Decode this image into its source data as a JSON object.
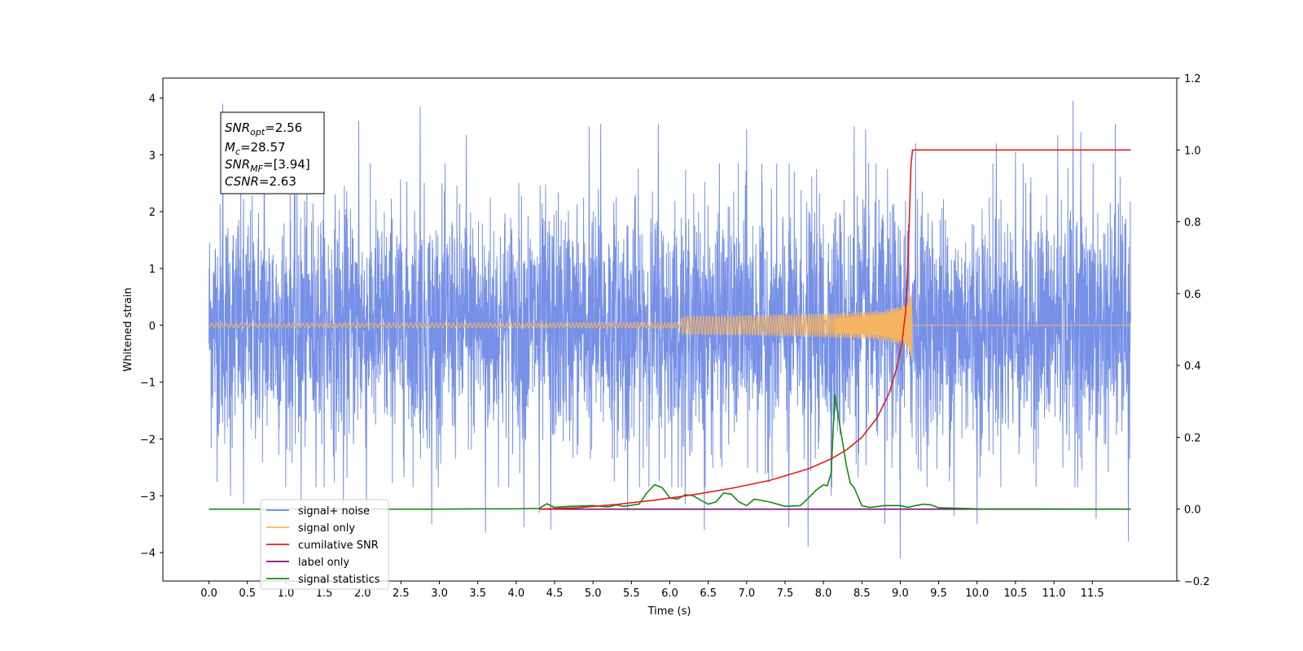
{
  "chart_data": {
    "type": "line",
    "xlabel": "Time (s)",
    "ylabel": "Whitened strain",
    "xlim": [
      -0.6,
      12.6
    ],
    "ylim": [
      -4.5,
      4.35
    ],
    "y2lim": [
      -0.2,
      1.2
    ],
    "x_ticks": [
      "0.0",
      "0.5",
      "1.0",
      "1.5",
      "2.0",
      "2.5",
      "3.0",
      "3.5",
      "4.0",
      "4.5",
      "5.0",
      "5.5",
      "6.0",
      "6.5",
      "7.0",
      "7.5",
      "8.0",
      "8.5",
      "9.0",
      "9.5",
      "10.0",
      "10.5",
      "11.0",
      "11.5"
    ],
    "y_ticks": [
      "−4",
      "−3",
      "−2",
      "−1",
      "0",
      "1",
      "2",
      "3",
      "4"
    ],
    "y2_ticks": [
      "−0.2",
      "0.0",
      "0.2",
      "0.4",
      "0.6",
      "0.8",
      "1.0",
      "1.2"
    ],
    "grid": false,
    "legend_position": "lower-left",
    "info_box": {
      "snr_opt": {
        "base": "SNR",
        "sub": "opt",
        "value": "=2.56"
      },
      "mc": {
        "base": "M",
        "sub": "c",
        "value": "=28.57"
      },
      "snr_mf": {
        "base": "SNR",
        "sub": "MF",
        "value": "=[3.94]"
      },
      "csnr": {
        "base": "CSNR",
        "value": "=2.63"
      }
    },
    "series": [
      {
        "name": "signal+ noise",
        "color": "#6f8ae6",
        "axis": "left",
        "x_range": [
          0.0,
          12.0
        ],
        "std": 1.05,
        "spikes": [
          [
            0.18,
            3.9
          ],
          [
            0.28,
            -3.0
          ],
          [
            0.45,
            -3.15
          ],
          [
            0.72,
            3.65
          ],
          [
            1.2,
            -3.1
          ],
          [
            1.75,
            -3.15
          ],
          [
            1.95,
            3.6
          ],
          [
            2.05,
            -3.3
          ],
          [
            2.75,
            3.85
          ],
          [
            2.9,
            -3.5
          ],
          [
            3.35,
            3.35
          ],
          [
            3.6,
            -3.65
          ],
          [
            4.1,
            -3.55
          ],
          [
            4.3,
            -3.3
          ],
          [
            4.45,
            -3.6
          ],
          [
            4.95,
            3.5
          ],
          [
            5.1,
            3.55
          ],
          [
            5.45,
            -3.25
          ],
          [
            5.85,
            3.55
          ],
          [
            6.2,
            -3.15
          ],
          [
            6.45,
            -3.6
          ],
          [
            7.0,
            3.45
          ],
          [
            7.55,
            -3.55
          ],
          [
            7.8,
            -3.9
          ],
          [
            8.1,
            -3.0
          ],
          [
            8.4,
            3.5
          ],
          [
            8.55,
            3.45
          ],
          [
            8.8,
            -3.5
          ],
          [
            9.0,
            -4.1
          ],
          [
            9.2,
            3.2
          ],
          [
            9.7,
            -3.35
          ],
          [
            10.0,
            -3.5
          ],
          [
            10.25,
            3.2
          ],
          [
            10.5,
            3.05
          ],
          [
            11.05,
            3.35
          ],
          [
            11.25,
            3.95
          ],
          [
            11.35,
            3.4
          ],
          [
            11.55,
            -3.4
          ],
          [
            11.8,
            3.55
          ],
          [
            11.97,
            -3.8
          ]
        ]
      },
      {
        "name": "signal only",
        "color": "#f5b462",
        "axis": "left",
        "merger_time": 9.15,
        "peak_amplitude": 0.62,
        "start_time": 0.0,
        "end_time": 12.0
      },
      {
        "name": "cumilative SNR",
        "color": "#e81a1a",
        "axis": "right",
        "points": [
          [
            4.3,
            0.0
          ],
          [
            4.8,
            0.004
          ],
          [
            5.3,
            0.013
          ],
          [
            5.8,
            0.025
          ],
          [
            6.3,
            0.04
          ],
          [
            6.8,
            0.058
          ],
          [
            7.3,
            0.08
          ],
          [
            7.8,
            0.112
          ],
          [
            8.1,
            0.14
          ],
          [
            8.3,
            0.165
          ],
          [
            8.5,
            0.2
          ],
          [
            8.7,
            0.255
          ],
          [
            8.85,
            0.32
          ],
          [
            8.95,
            0.39
          ],
          [
            9.02,
            0.46
          ],
          [
            9.07,
            0.55
          ],
          [
            9.1,
            0.68
          ],
          [
            9.12,
            0.82
          ],
          [
            9.14,
            0.96
          ],
          [
            9.16,
            1.0
          ],
          [
            12.0,
            1.0
          ]
        ]
      },
      {
        "name": "label only",
        "color": "#7a0a7a",
        "axis": "right",
        "points": [
          [
            4.3,
            0.0
          ],
          [
            12.0,
            0.0
          ]
        ]
      },
      {
        "name": "signal statistics",
        "color": "#138a13",
        "axis": "right",
        "points": [
          [
            0.0,
            0.0
          ],
          [
            3.0,
            0.0
          ],
          [
            3.5,
            0.001
          ],
          [
            4.0,
            0.001
          ],
          [
            4.3,
            0.002
          ],
          [
            4.4,
            0.015
          ],
          [
            4.5,
            0.005
          ],
          [
            4.7,
            0.008
          ],
          [
            5.0,
            0.01
          ],
          [
            5.2,
            0.006
          ],
          [
            5.3,
            0.012
          ],
          [
            5.4,
            0.008
          ],
          [
            5.6,
            0.014
          ],
          [
            5.7,
            0.045
          ],
          [
            5.8,
            0.068
          ],
          [
            5.9,
            0.06
          ],
          [
            6.0,
            0.032
          ],
          [
            6.1,
            0.028
          ],
          [
            6.2,
            0.04
          ],
          [
            6.3,
            0.038
          ],
          [
            6.4,
            0.025
          ],
          [
            6.5,
            0.014
          ],
          [
            6.6,
            0.02
          ],
          [
            6.7,
            0.045
          ],
          [
            6.8,
            0.042
          ],
          [
            6.9,
            0.02
          ],
          [
            7.0,
            0.01
          ],
          [
            7.1,
            0.028
          ],
          [
            7.3,
            0.02
          ],
          [
            7.5,
            0.008
          ],
          [
            7.7,
            0.01
          ],
          [
            7.8,
            0.03
          ],
          [
            7.9,
            0.052
          ],
          [
            8.0,
            0.068
          ],
          [
            8.05,
            0.065
          ],
          [
            8.1,
            0.1
          ],
          [
            8.15,
            0.32
          ],
          [
            8.2,
            0.25
          ],
          [
            8.3,
            0.12
          ],
          [
            8.35,
            0.072
          ],
          [
            8.4,
            0.06
          ],
          [
            8.5,
            0.01
          ],
          [
            8.6,
            0.005
          ],
          [
            8.8,
            0.01
          ],
          [
            9.0,
            0.01
          ],
          [
            9.1,
            0.005
          ],
          [
            9.2,
            0.01
          ],
          [
            9.3,
            0.014
          ],
          [
            9.4,
            0.012
          ],
          [
            9.5,
            0.004
          ],
          [
            10.0,
            0.001
          ],
          [
            12.0,
            0.0
          ]
        ]
      }
    ]
  }
}
